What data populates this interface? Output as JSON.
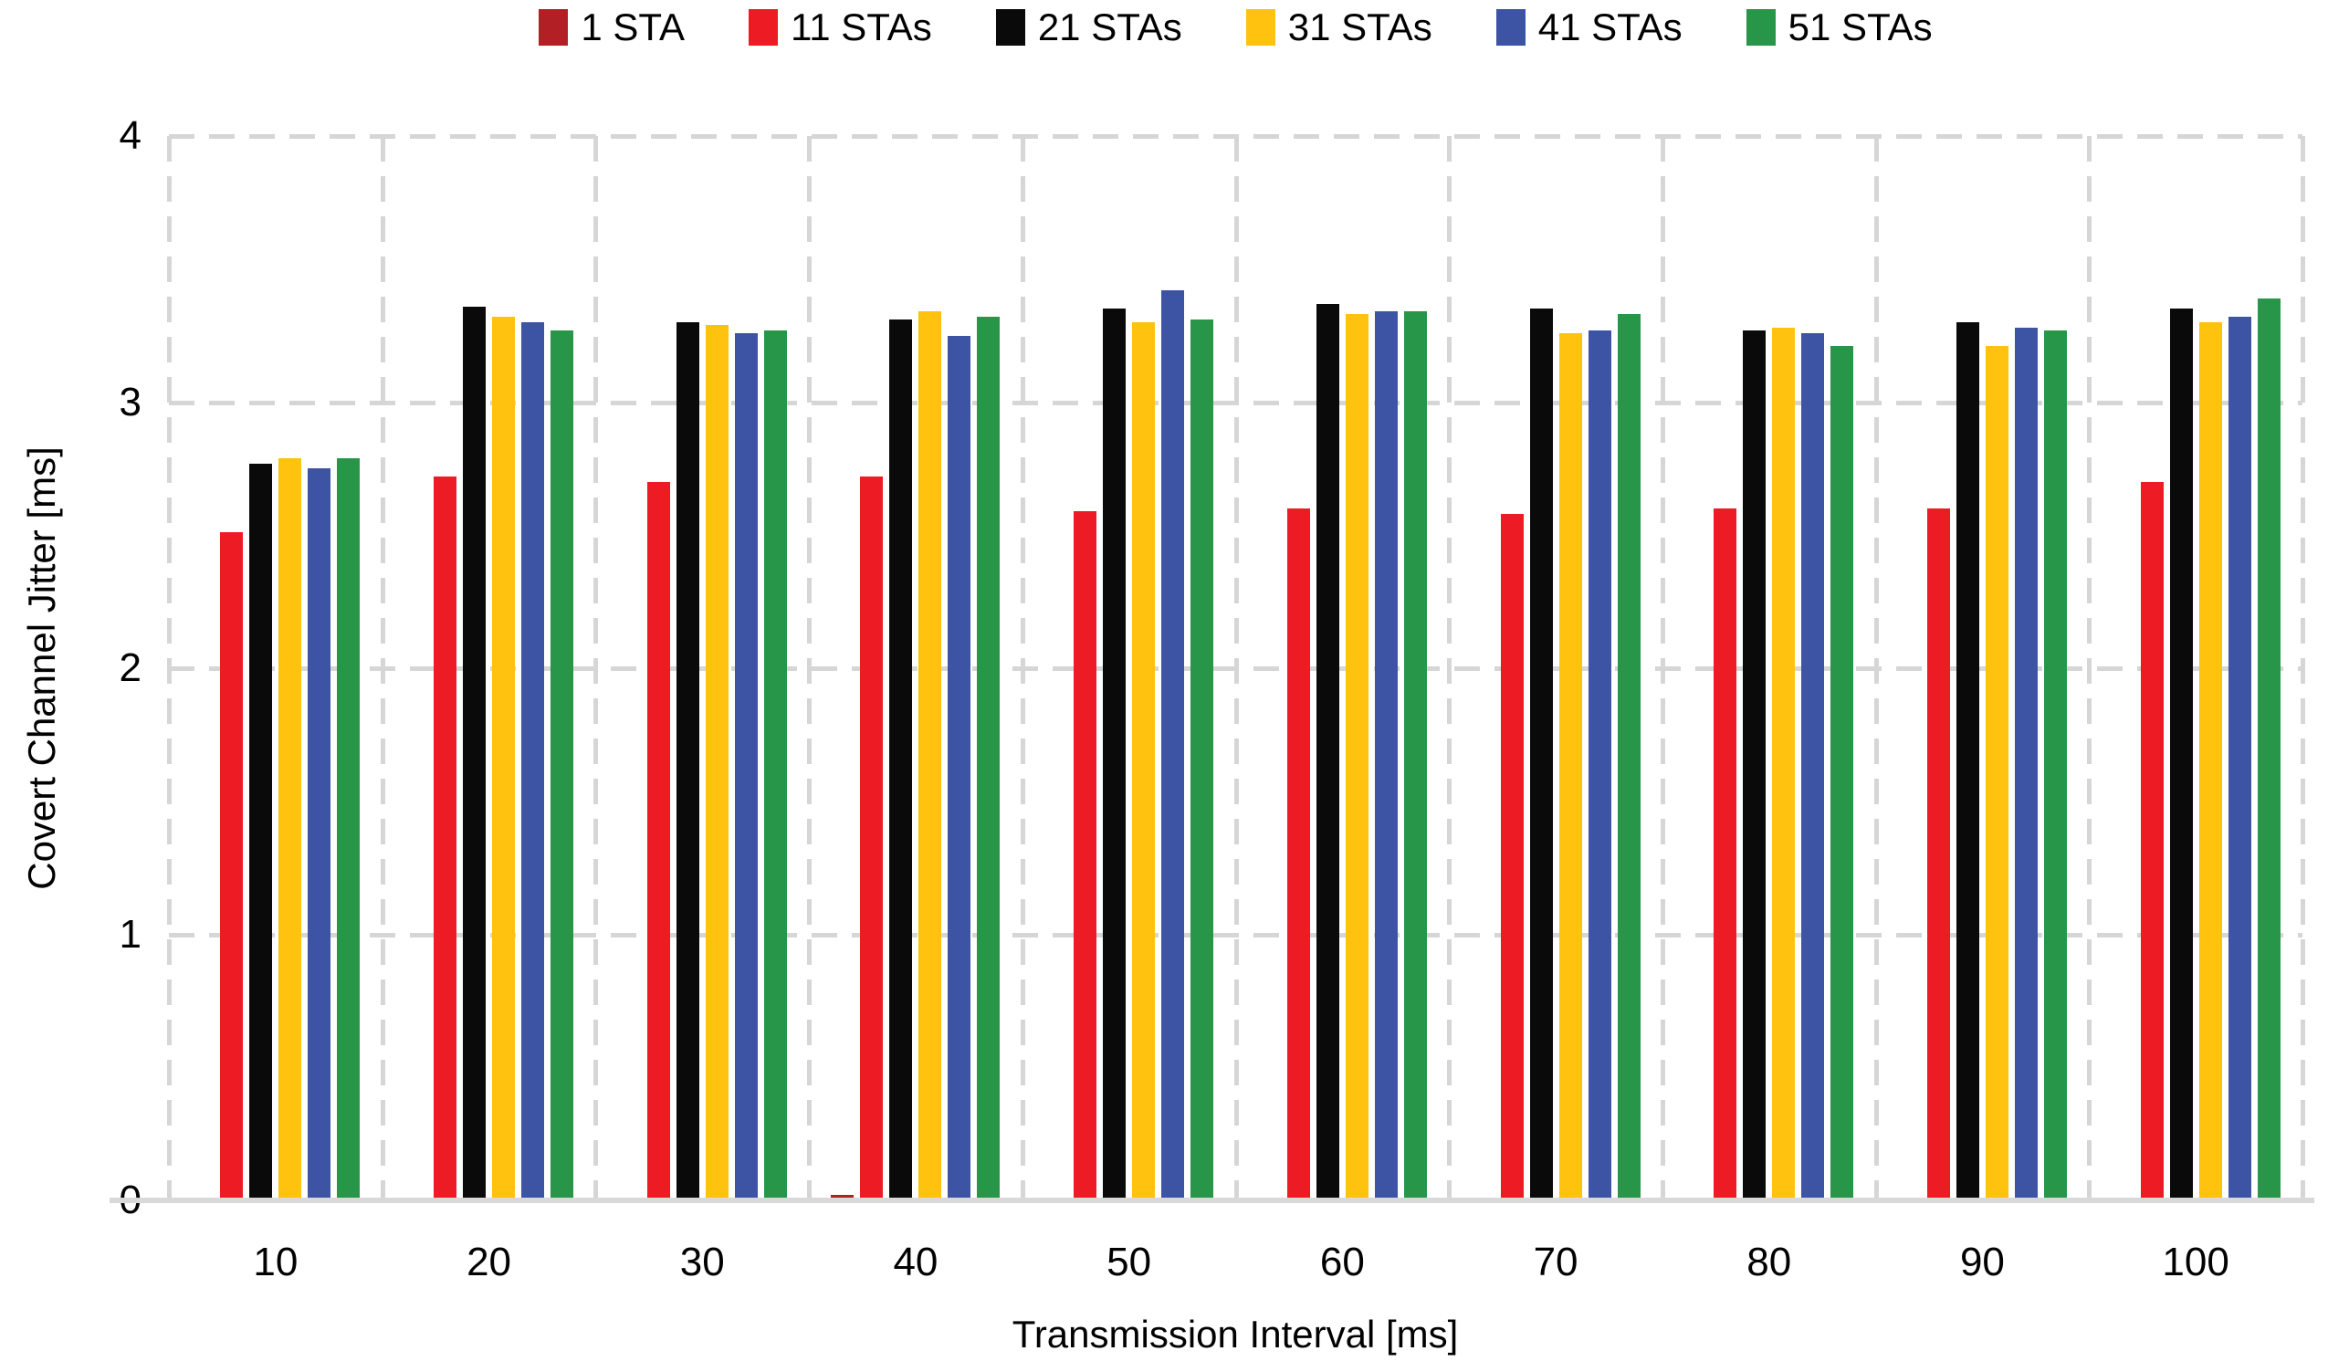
{
  "figure": {
    "background": "#ffffff",
    "text_color": "#000000",
    "grid_color": "#d6d6d6",
    "axis_line_color": "#d9d9d9"
  },
  "chart_data": {
    "type": "bar",
    "title": "",
    "xlabel": "Transmission Interval [ms]",
    "ylabel": "Covert Channel Jitter [ms]",
    "categories": [
      "10",
      "20",
      "30",
      "40",
      "50",
      "60",
      "70",
      "80",
      "90",
      "100"
    ],
    "series": [
      {
        "name": "1 STA",
        "color": "#b22025",
        "values": [
          0,
          0,
          0,
          0.02,
          0,
          0,
          0,
          0,
          0,
          0
        ]
      },
      {
        "name": "11 STAs",
        "color": "#ed1c24",
        "values": [
          2.51,
          2.72,
          2.7,
          2.72,
          2.59,
          2.6,
          2.58,
          2.6,
          2.6,
          2.7
        ]
      },
      {
        "name": "21 STAs",
        "color": "#0a0a0a",
        "values": [
          2.77,
          3.36,
          3.3,
          3.31,
          3.35,
          3.37,
          3.35,
          3.27,
          3.3,
          3.35
        ]
      },
      {
        "name": "31 STAs",
        "color": "#ffc20e",
        "values": [
          2.79,
          3.32,
          3.29,
          3.34,
          3.3,
          3.33,
          3.26,
          3.28,
          3.21,
          3.3
        ]
      },
      {
        "name": "41 STAs",
        "color": "#3d54a5",
        "values": [
          2.75,
          3.3,
          3.26,
          3.25,
          3.42,
          3.34,
          3.27,
          3.26,
          3.28,
          3.32
        ]
      },
      {
        "name": "51 STAs",
        "color": "#289648",
        "values": [
          2.79,
          3.27,
          3.27,
          3.32,
          3.31,
          3.34,
          3.33,
          3.21,
          3.27,
          3.39
        ]
      }
    ],
    "ylim": [
      0,
      4
    ],
    "yticks": [
      "0",
      "1",
      "2",
      "3",
      "4"
    ],
    "grid": "dashed light-gray horizontal and vertical gridlines, solid light-gray x-axis line",
    "legend_position": "top center"
  }
}
